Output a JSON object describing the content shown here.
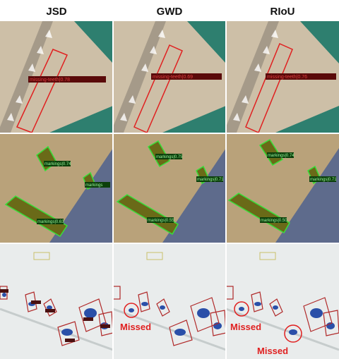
{
  "columns": [
    "JSD",
    "GWD",
    "RIoU"
  ],
  "row1": {
    "labels": [
      "missing-teeth|0.78",
      "missing-teeth|0.69",
      "missing-teeth|0.76"
    ],
    "colors": {
      "background": "#2e7f6f",
      "surface": "#cdbfa7",
      "edge": "#8a8275",
      "box": "#e02020",
      "label_bg": "#5a0a0a"
    }
  },
  "row2": {
    "labels_a": [
      "markings|0.74",
      "markings|0.75",
      "markings|0.74"
    ],
    "labels_b": [
      "markings|0.63",
      "markings|0.55",
      "markings|0.50"
    ],
    "labels_c": [
      "markings",
      "markings|0.71",
      "markings|0.71"
    ],
    "colors": {
      "surface": "#b9a27a",
      "gravel": "#5e6b8c",
      "box": "#38e03a",
      "fill": "#6a6a18",
      "label_bg": "#0b3f0b"
    }
  },
  "row3": {
    "missed_label": "Missed",
    "colors": {
      "background": "#e9ecec",
      "box": "#b02828",
      "blob": "#2a4fa8",
      "missed": "#e02020"
    }
  }
}
